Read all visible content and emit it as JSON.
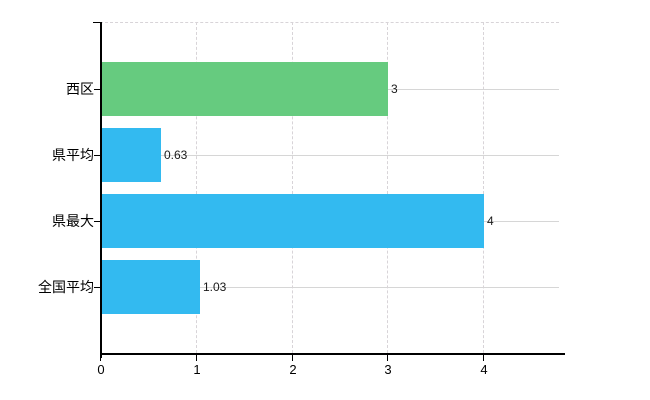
{
  "chart_data": {
    "type": "bar",
    "orientation": "horizontal",
    "title": "",
    "xlabel": "",
    "ylabel": "",
    "categories": [
      "西区",
      "県平均",
      "県最大",
      "全国平均"
    ],
    "values": [
      3,
      0.63,
      4,
      1.03
    ],
    "value_labels": [
      "3",
      "0.63",
      "4",
      "1.03"
    ],
    "bar_colors": [
      "#66cb7f",
      "#33baf0",
      "#33baf0",
      "#33baf0"
    ],
    "x_ticks": [
      0,
      1,
      2,
      3,
      4
    ],
    "x_tick_labels": [
      "0",
      "1",
      "2",
      "3",
      "4"
    ],
    "xlim": [
      0,
      4.8
    ],
    "grid": true,
    "legend": false
  },
  "colors": {
    "green_bar": "#66cb7f",
    "blue_bar": "#33baf0",
    "gridline": "#d6d6d6",
    "axis": "#000000",
    "text": "#000000"
  }
}
